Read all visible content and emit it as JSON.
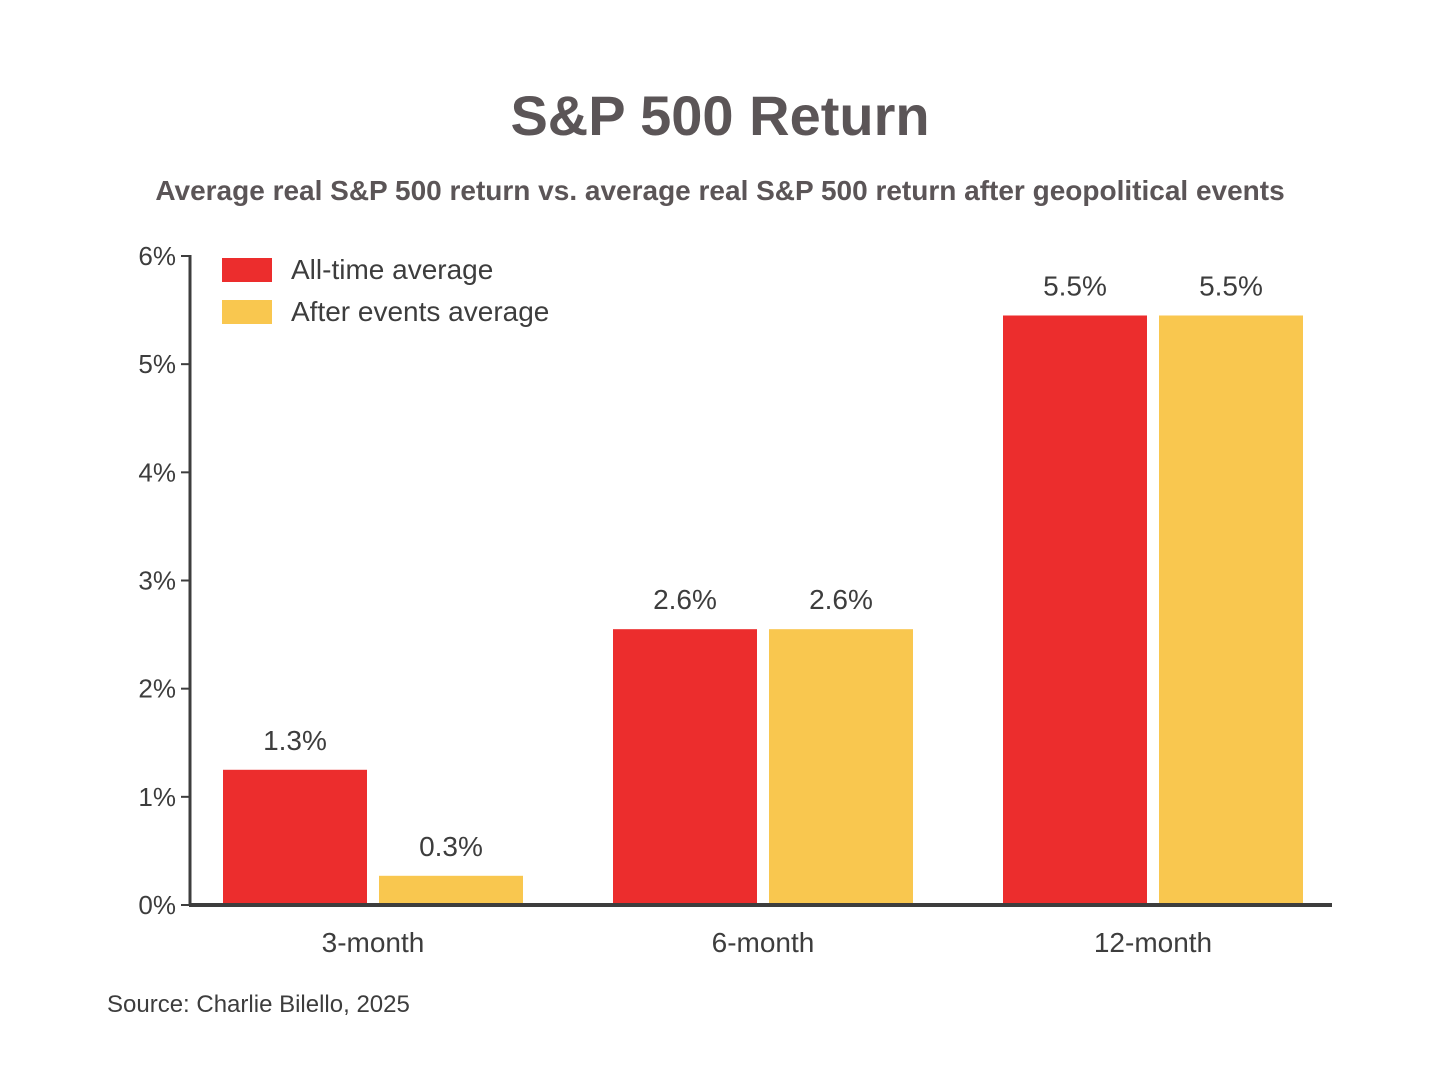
{
  "chart_data": {
    "type": "bar",
    "title": "S&P 500 Return",
    "subtitle": "Average real S&P 500 return vs. average real S&P 500 return after geopolitical events",
    "categories": [
      "3-month",
      "6-month",
      "12-month"
    ],
    "series": [
      {
        "name": "All-time average",
        "color": "#ec2d2d",
        "values": [
          1.25,
          2.55,
          5.45
        ],
        "labels": [
          "1.3%",
          "2.6%",
          "5.5%"
        ]
      },
      {
        "name": "After events average",
        "color": "#f9c74f",
        "values": [
          0.27,
          2.55,
          5.45
        ],
        "labels": [
          "0.3%",
          "2.6%",
          "5.5%"
        ]
      }
    ],
    "ylim": [
      0,
      6
    ],
    "yticks": [
      0,
      1,
      2,
      3,
      4,
      5,
      6
    ],
    "ytick_labels": [
      "0%",
      "1%",
      "2%",
      "3%",
      "4%",
      "5%",
      "6%"
    ],
    "xlabel": "",
    "ylabel": "",
    "grid": false,
    "legend_position": "top-left",
    "source": "Source: Charlie Bilello, 2025"
  }
}
